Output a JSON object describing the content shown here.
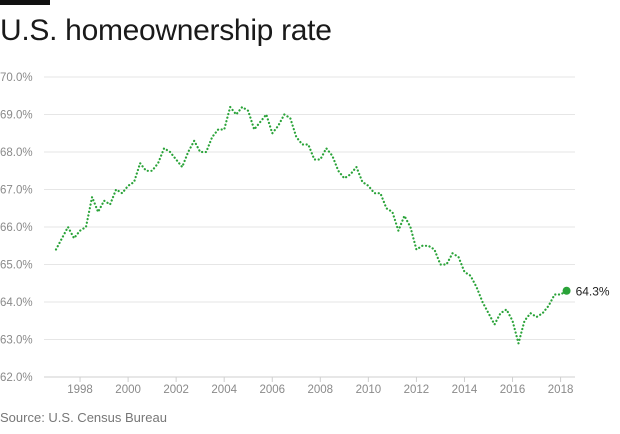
{
  "title": "U.S. homeownership rate",
  "source": "Source: U.S. Census Bureau",
  "colors": {
    "line": "#2aa339",
    "grid": "#e6e6e6",
    "axis": "#cfcfcf"
  },
  "chart_data": {
    "type": "line",
    "title": "U.S. homeownership rate",
    "xlabel": "",
    "ylabel": "",
    "grid": true,
    "line_style": "dotted",
    "xlim": [
      1996.5,
      2018.6
    ],
    "ylim": [
      62,
      70
    ],
    "yticks": [
      62,
      63,
      64,
      65,
      66,
      67,
      68,
      69,
      70
    ],
    "ytick_labels": [
      "62.0%",
      "63.0%",
      "64.0%",
      "65.0%",
      "66.0%",
      "67.0%",
      "68.0%",
      "69.0%",
      "70.0%"
    ],
    "xticks": [
      1998,
      2000,
      2002,
      2004,
      2006,
      2008,
      2010,
      2012,
      2014,
      2016,
      2018
    ],
    "xtick_labels": [
      "1998",
      "2000",
      "2002",
      "2004",
      "2006",
      "2008",
      "2010",
      "2012",
      "2014",
      "2016",
      "2018"
    ],
    "series": [
      {
        "x": [
          1997.0,
          1997.25,
          1997.5,
          1997.75,
          1998.0,
          1998.25,
          1998.5,
          1998.75,
          1999.0,
          1999.25,
          1999.5,
          1999.75,
          2000.0,
          2000.25,
          2000.5,
          2000.75,
          2001.0,
          2001.25,
          2001.5,
          2001.75,
          2002.0,
          2002.25,
          2002.5,
          2002.75,
          2003.0,
          2003.25,
          2003.5,
          2003.75,
          2004.0,
          2004.25,
          2004.5,
          2004.75,
          2005.0,
          2005.25,
          2005.5,
          2005.75,
          2006.0,
          2006.25,
          2006.5,
          2006.75,
          2007.0,
          2007.25,
          2007.5,
          2007.75,
          2008.0,
          2008.25,
          2008.5,
          2008.75,
          2009.0,
          2009.25,
          2009.5,
          2009.75,
          2010.0,
          2010.25,
          2010.5,
          2010.75,
          2011.0,
          2011.25,
          2011.5,
          2011.75,
          2012.0,
          2012.25,
          2012.5,
          2012.75,
          2013.0,
          2013.25,
          2013.5,
          2013.75,
          2014.0,
          2014.25,
          2014.5,
          2014.75,
          2015.0,
          2015.25,
          2015.5,
          2015.75,
          2016.0,
          2016.25,
          2016.5,
          2016.75,
          2017.0,
          2017.25,
          2017.5,
          2017.75,
          2018.0,
          2018.25
        ],
        "values": [
          65.4,
          65.7,
          66.0,
          65.7,
          65.9,
          66.0,
          66.8,
          66.4,
          66.7,
          66.6,
          67.0,
          66.9,
          67.1,
          67.2,
          67.7,
          67.5,
          67.5,
          67.7,
          68.1,
          68.0,
          67.8,
          67.6,
          68.0,
          68.3,
          68.0,
          68.0,
          68.4,
          68.6,
          68.6,
          69.2,
          69.0,
          69.2,
          69.1,
          68.6,
          68.8,
          69.0,
          68.5,
          68.7,
          69.0,
          68.9,
          68.4,
          68.2,
          68.2,
          67.8,
          67.8,
          68.1,
          67.9,
          67.5,
          67.3,
          67.4,
          67.6,
          67.2,
          67.1,
          66.9,
          66.9,
          66.5,
          66.4,
          65.9,
          66.3,
          66.0,
          65.4,
          65.5,
          65.5,
          65.4,
          65.0,
          65.0,
          65.3,
          65.2,
          64.8,
          64.7,
          64.4,
          64.0,
          63.7,
          63.4,
          63.7,
          63.8,
          63.5,
          62.9,
          63.5,
          63.7,
          63.6,
          63.7,
          63.9,
          64.2,
          64.2,
          64.3
        ]
      }
    ],
    "annotation": {
      "x": 2018.25,
      "y": 64.3,
      "label": "64.3%"
    }
  }
}
